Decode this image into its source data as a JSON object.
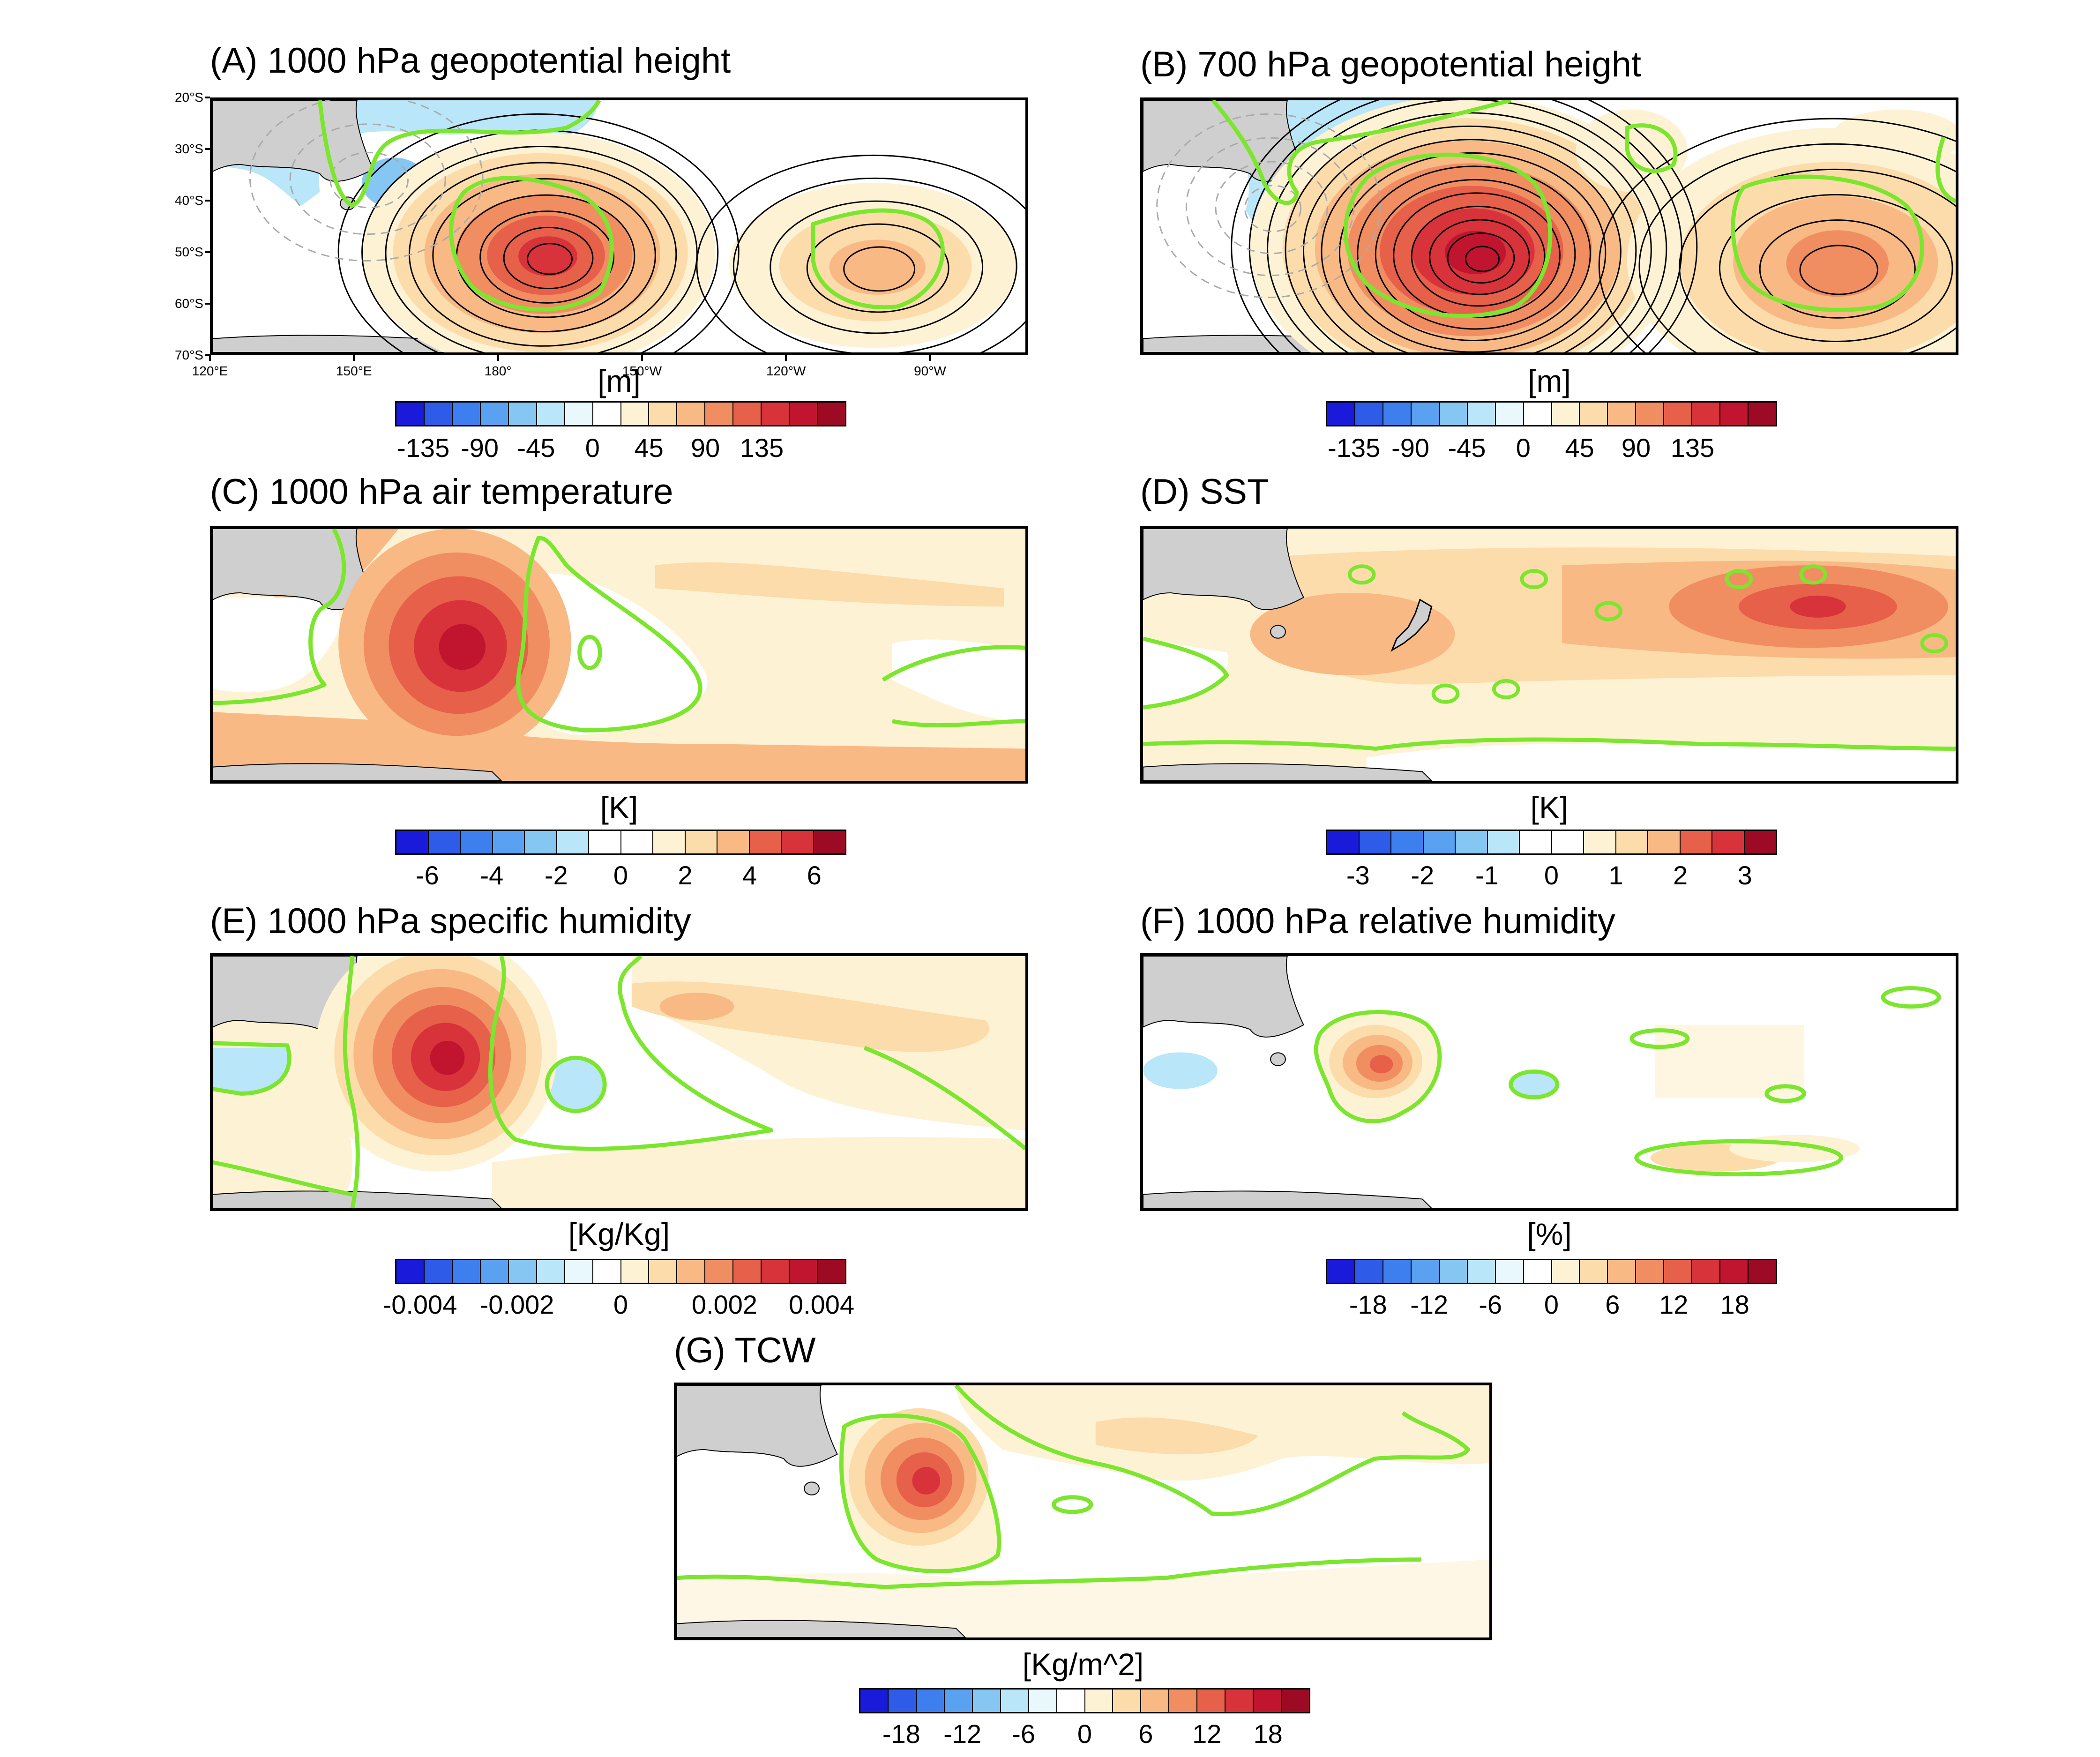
{
  "panels": {
    "a": {
      "title": "(A) 1000 hPa geopotential height",
      "unit": "[m]",
      "ticks": [
        "-135",
        "-90",
        "-45",
        "0",
        "45",
        "90",
        "135"
      ]
    },
    "b": {
      "title": "(B) 700 hPa geopotential height",
      "unit": "[m]",
      "ticks": [
        "-135",
        "-90",
        "-45",
        "0",
        "45",
        "90",
        "135"
      ]
    },
    "c": {
      "title": "(C) 1000 hPa air temperature",
      "unit": "[K]",
      "ticks": [
        "-6",
        "-4",
        "-2",
        "0",
        "2",
        "4",
        "6"
      ]
    },
    "d": {
      "title": "(D) SST",
      "unit": "[K]",
      "ticks": [
        "-3",
        "-2",
        "-1",
        "0",
        "1",
        "2",
        "3"
      ]
    },
    "e": {
      "title": "(E) 1000 hPa specific humidity",
      "unit": "[Kg/Kg]",
      "ticks": [
        "-0.004",
        "-0.002",
        "0",
        "0.002",
        "0.004"
      ]
    },
    "f": {
      "title": "(F) 1000 hPa relative humidity",
      "unit": "[%]",
      "ticks": [
        "-18",
        "-12",
        "-6",
        "0",
        "6",
        "12",
        "18"
      ]
    },
    "g": {
      "title": "(G) TCW",
      "unit": "[Kg/m^2]",
      "ticks": [
        "-18",
        "-12",
        "-6",
        "0",
        "6",
        "12",
        "18"
      ]
    }
  },
  "axes": {
    "lat_labels": [
      "20°S",
      "30°S",
      "40°S",
      "50°S",
      "60°S",
      "70°S"
    ],
    "lon_labels": [
      "120°E",
      "150°E",
      "180°",
      "150°W",
      "120°W",
      "90°W"
    ]
  },
  "colors": {
    "palette": [
      "#1a1adb",
      "#2e5be8",
      "#3d7fee",
      "#5aa2f1",
      "#86c6f3",
      "#b9e6f8",
      "#e8f8fd",
      "#ffffff",
      "#fdf2d4",
      "#fbdcaa",
      "#f8b985",
      "#f08e62",
      "#e6604a",
      "#d8323a",
      "#c1142f",
      "#9d0a23"
    ],
    "significance": "#7ce62e",
    "land": "#cfcfcf"
  }
}
